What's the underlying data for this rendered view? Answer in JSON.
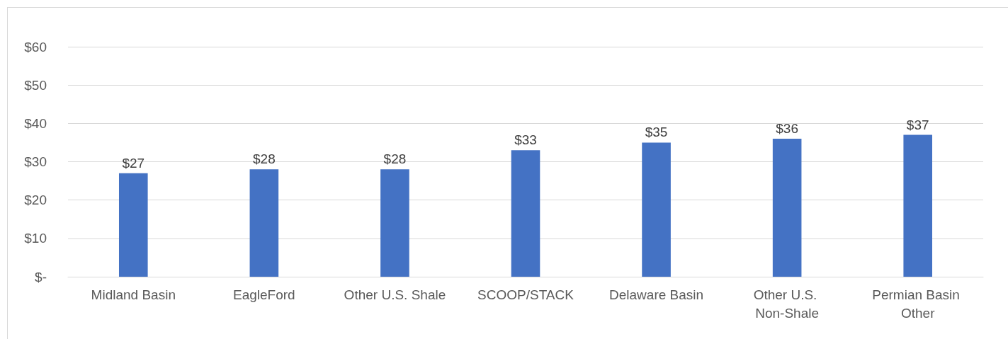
{
  "chart_data": {
    "type": "bar",
    "categories": [
      "Midland Basin",
      "EagleFord",
      "Other U.S. Shale",
      "SCOOP/STACK",
      "Delaware Basin",
      "Other U.S. Non-Shale",
      "Permian Basin Other"
    ],
    "values": [
      27,
      28,
      28,
      33,
      35,
      36,
      37
    ],
    "value_labels": [
      "$27",
      "$28",
      "$28",
      "$33",
      "$35",
      "$36",
      "$37"
    ],
    "color": "#4472c4",
    "ylim": [
      0,
      60
    ],
    "yticks": [
      {
        "value": 0,
        "label": "$-"
      },
      {
        "value": 10,
        "label": "$10"
      },
      {
        "value": 20,
        "label": "$20"
      },
      {
        "value": 30,
        "label": "$30"
      },
      {
        "value": 40,
        "label": "$40"
      },
      {
        "value": 50,
        "label": "$50"
      },
      {
        "value": 60,
        "label": "$60"
      }
    ],
    "grid": "y"
  }
}
